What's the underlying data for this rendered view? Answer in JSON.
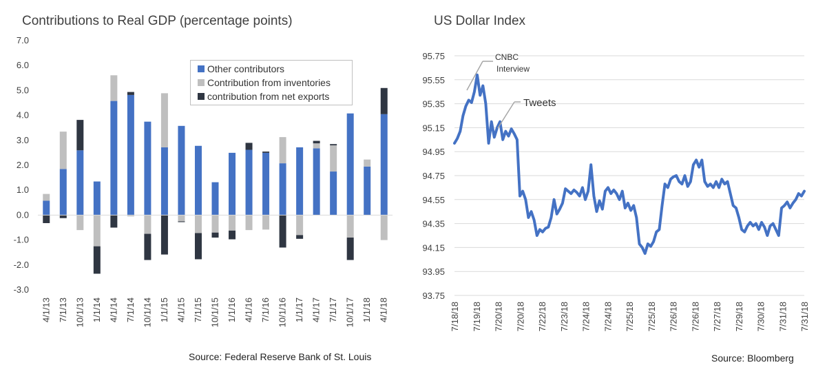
{
  "left": {
    "title": "Contributions to Real GDP (percentage points)",
    "source": "Source: Federal Reserve Bank of St. Louis"
  },
  "right": {
    "title": "US Dollar Index",
    "source": "Source: Bloomberg",
    "annotation_cnbc_line1": "CNBC",
    "annotation_cnbc_line2": "Interview",
    "annotation_tweets": "Tweets"
  },
  "colors": {
    "other": "#4472c4",
    "inventories": "#bfbfbf",
    "net_exports": "#2f3642",
    "line": "#4472c4",
    "grid": "#d9d9d9",
    "annotation": "#a6a6a6"
  },
  "chart_data": [
    {
      "type": "bar",
      "stacked": true,
      "title": "Contributions to Real GDP (percentage points)",
      "categories": [
        "4/1/13",
        "7/1/13",
        "10/1/13",
        "1/1/14",
        "4/1/14",
        "7/1/14",
        "10/1/14",
        "1/1/15",
        "4/1/15",
        "7/1/15",
        "10/1/15",
        "1/1/16",
        "4/1/16",
        "7/1/16",
        "10/1/16",
        "1/1/17",
        "4/1/17",
        "7/1/17",
        "10/1/17",
        "1/1/18",
        "4/1/18"
      ],
      "ylim": [
        -3.0,
        7.0
      ],
      "yticks": [
        "7.0",
        "6.0",
        "5.0",
        "4.0",
        "3.0",
        "2.0",
        "1.0",
        "0.0",
        "-1.0",
        "-2.0",
        "-3.0"
      ],
      "legend_position": "top-right",
      "series": [
        {
          "name": "Other contributors",
          "color_key": "other",
          "values": [
            0.58,
            1.85,
            2.6,
            1.35,
            4.58,
            4.82,
            3.75,
            2.72,
            3.58,
            2.78,
            1.32,
            2.5,
            2.62,
            2.5,
            2.08,
            2.72,
            2.68,
            1.75,
            4.08,
            1.95,
            4.05
          ]
        },
        {
          "name": "Contribution from inventories",
          "color_key": "inventories",
          "values": [
            0.27,
            1.5,
            -0.6,
            -1.25,
            1.03,
            -0.05,
            -0.75,
            2.17,
            -0.25,
            -0.72,
            -0.7,
            -0.62,
            -0.6,
            -0.58,
            1.05,
            -0.8,
            0.2,
            1.05,
            -0.9,
            0.28,
            -1.0
          ]
        },
        {
          "name": "contribution from net exports",
          "color_key": "net_exports",
          "values": [
            -0.32,
            -0.12,
            1.22,
            -1.1,
            -0.5,
            0.12,
            -1.05,
            -1.58,
            -0.03,
            -1.05,
            -0.2,
            -0.35,
            0.28,
            0.05,
            -1.3,
            -0.15,
            0.1,
            0.05,
            -0.9,
            0.0,
            1.05
          ]
        }
      ]
    },
    {
      "type": "line",
      "title": "US Dollar Index",
      "xlabels": [
        "7/18/18",
        "7/19/18",
        "7/20/18",
        "7/20/18",
        "7/22/18",
        "7/23/18",
        "7/24/18",
        "7/24/18",
        "7/25/18",
        "7/25/18",
        "7/26/18",
        "7/26/18",
        "7/27/18",
        "7/29/18",
        "7/30/18",
        "7/31/18",
        "7/31/18"
      ],
      "ylim": [
        93.75,
        95.75
      ],
      "yticks": [
        "95.75",
        "95.55",
        "95.35",
        "95.15",
        "94.95",
        "94.75",
        "94.55",
        "94.35",
        "94.15",
        "93.95",
        "93.75"
      ],
      "grid": true,
      "series": [
        {
          "name": "",
          "values": [
            95.02,
            95.06,
            95.12,
            95.25,
            95.33,
            95.38,
            95.36,
            95.45,
            95.59,
            95.42,
            95.5,
            95.35,
            95.02,
            95.2,
            95.07,
            95.15,
            95.2,
            95.05,
            95.12,
            95.08,
            95.14,
            95.1,
            95.05,
            94.58,
            94.62,
            94.55,
            94.4,
            94.45,
            94.38,
            94.25,
            94.3,
            94.28,
            94.31,
            94.32,
            94.4,
            94.55,
            94.43,
            94.47,
            94.52,
            94.64,
            94.62,
            94.6,
            94.63,
            94.61,
            94.58,
            94.65,
            94.55,
            94.62,
            94.84,
            94.58,
            94.45,
            94.54,
            94.47,
            94.62,
            94.65,
            94.6,
            94.63,
            94.6,
            94.55,
            94.62,
            94.48,
            94.52,
            94.46,
            94.5,
            94.4,
            94.18,
            94.15,
            94.1,
            94.18,
            94.16,
            94.2,
            94.28,
            94.3,
            94.5,
            94.68,
            94.65,
            94.72,
            94.74,
            94.75,
            94.7,
            94.68,
            94.75,
            94.66,
            94.7,
            94.84,
            94.88,
            94.82,
            94.88,
            94.7,
            94.66,
            94.68,
            94.65,
            94.7,
            94.65,
            94.72,
            94.68,
            94.7,
            94.6,
            94.5,
            94.48,
            94.4,
            94.3,
            94.28,
            94.33,
            94.36,
            94.33,
            94.35,
            94.3,
            94.36,
            94.32,
            94.25,
            94.33,
            94.35,
            94.3,
            94.25,
            94.48,
            94.5,
            94.53,
            94.48,
            94.52,
            94.55,
            94.6,
            94.58,
            94.62
          ]
        }
      ]
    }
  ]
}
